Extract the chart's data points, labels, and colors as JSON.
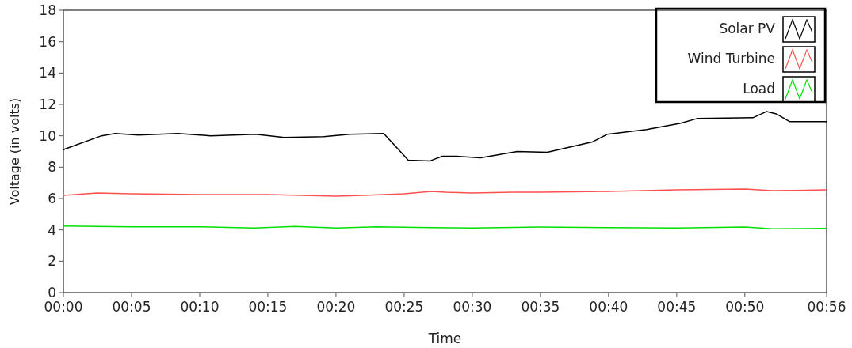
{
  "chart_data": {
    "type": "line",
    "xlabel": "Time",
    "ylabel": "Voltage (in volts)",
    "xlim": [
      0,
      56
    ],
    "xticks": [
      {
        "value": 0,
        "label": "00:00"
      },
      {
        "value": 5,
        "label": "00:05"
      },
      {
        "value": 10,
        "label": "00:10"
      },
      {
        "value": 15,
        "label": "00:15"
      },
      {
        "value": 20,
        "label": "00:20"
      },
      {
        "value": 25,
        "label": "00:25"
      },
      {
        "value": 30,
        "label": "00:30"
      },
      {
        "value": 35,
        "label": "00:35"
      },
      {
        "value": 40,
        "label": "00:40"
      },
      {
        "value": 45,
        "label": "00:45"
      },
      {
        "value": 50,
        "label": "00:50"
      },
      {
        "value": 56,
        "label": "00:56"
      }
    ],
    "ylim": [
      0,
      18
    ],
    "yticks": [
      0,
      2,
      4,
      6,
      8,
      10,
      12,
      14,
      16,
      18
    ],
    "legend": "top right",
    "grid": false,
    "series": [
      {
        "name": "Solar PV",
        "color": "#000000",
        "x": [
          0,
          0.1,
          2.8,
          3.8,
          5.5,
          8.4,
          10.8,
          14.1,
          16.2,
          19.1,
          21,
          23.5,
          25.3,
          26.9,
          27.8,
          28.8,
          30.6,
          33.3,
          35.5,
          38.8,
          39.9,
          42.8,
          45.3,
          46.5,
          50.6,
          51.6,
          52.3,
          53.3,
          56
        ],
        "values": [
          9.1,
          9.15,
          10,
          10.15,
          10.05,
          10.15,
          10,
          10.1,
          9.9,
          9.95,
          10.1,
          10.15,
          8.45,
          8.4,
          8.7,
          8.7,
          8.6,
          9,
          8.95,
          9.6,
          10.1,
          10.4,
          10.8,
          11.1,
          11.15,
          11.55,
          11.4,
          10.9,
          10.9
        ]
      },
      {
        "name": "Wind Turbine",
        "color": "#ff5050",
        "x": [
          0,
          2.5,
          5,
          10,
          15,
          20,
          22,
          25,
          27,
          28,
          30,
          33,
          35,
          40,
          45,
          50,
          52,
          56
        ],
        "values": [
          6.2,
          6.35,
          6.3,
          6.25,
          6.25,
          6.15,
          6.2,
          6.3,
          6.45,
          6.4,
          6.35,
          6.4,
          6.4,
          6.45,
          6.55,
          6.6,
          6.5,
          6.55
        ]
      },
      {
        "name": "Load",
        "color": "#00e000",
        "x": [
          0,
          5,
          10,
          14,
          17,
          20,
          23,
          27,
          30,
          35,
          40,
          45,
          50,
          52,
          56
        ],
        "values": [
          4.25,
          4.2,
          4.2,
          4.12,
          4.22,
          4.12,
          4.2,
          4.15,
          4.12,
          4.18,
          4.15,
          4.12,
          4.18,
          4.07,
          4.1
        ]
      }
    ]
  }
}
